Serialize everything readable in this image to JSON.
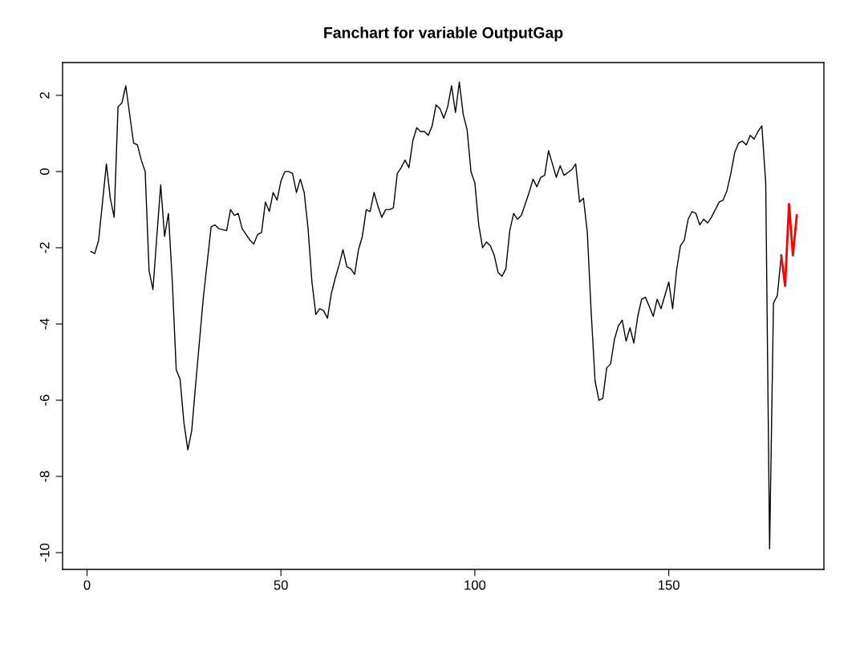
{
  "chart_data": {
    "type": "line",
    "title": "Fanchart for variable OutputGap",
    "xlim": [
      -6.3,
      190
    ],
    "ylim": [
      -10.44,
      2.86
    ],
    "xticks": [
      0,
      50,
      100,
      150
    ],
    "yticks": [
      -10,
      -8,
      -6,
      -4,
      -2,
      0,
      2
    ],
    "line_style": "solid",
    "marker": "none",
    "series": [
      {
        "color": "#000000",
        "x": [
          1,
          2,
          3,
          5,
          6,
          7,
          8,
          9,
          10,
          12,
          13,
          14,
          15,
          16,
          17,
          18,
          19,
          20,
          21,
          22,
          23,
          24,
          25,
          26,
          27,
          28,
          30,
          32,
          33,
          34,
          36,
          37,
          38,
          39,
          40,
          42,
          43,
          44,
          45,
          46,
          47,
          48,
          49,
          50,
          51,
          52,
          53,
          54,
          55,
          56,
          57,
          58,
          59,
          60,
          61,
          62,
          63,
          64,
          65,
          66,
          67,
          68,
          69,
          70,
          71,
          72,
          73,
          74,
          75,
          76,
          77,
          78,
          79,
          80,
          81,
          82,
          83,
          84,
          85,
          86,
          87,
          88,
          89,
          90,
          91,
          92,
          93,
          94,
          95,
          96,
          97,
          98,
          99,
          100,
          101,
          102,
          103,
          104,
          105,
          106,
          107,
          108,
          109,
          110,
          111,
          112,
          113,
          114,
          115,
          116,
          117,
          118,
          119,
          120,
          121,
          122,
          123,
          125,
          126,
          127,
          128,
          129,
          130,
          131,
          132,
          133,
          134,
          135,
          136,
          137,
          138,
          139,
          140,
          141,
          142,
          143,
          144,
          145,
          146,
          147,
          148,
          150,
          151,
          152,
          153,
          154,
          155,
          156,
          157,
          158,
          159,
          160,
          161,
          162,
          163,
          164,
          165,
          166,
          167,
          168,
          169,
          170,
          171,
          172,
          173,
          174,
          175,
          176,
          177,
          178,
          179
        ],
        "values": [
          -2.1,
          -2.15,
          -1.8,
          0.2,
          -0.7,
          -1.2,
          1.7,
          1.8,
          2.25,
          0.75,
          0.7,
          0.3,
          0.0,
          -2.6,
          -3.1,
          -1.7,
          -0.35,
          -1.7,
          -1.1,
          -2.9,
          -5.2,
          -5.45,
          -6.6,
          -7.3,
          -6.8,
          -5.6,
          -3.3,
          -1.45,
          -1.4,
          -1.5,
          -1.55,
          -1.0,
          -1.15,
          -1.1,
          -1.5,
          -1.8,
          -1.9,
          -1.65,
          -1.6,
          -0.8,
          -1.05,
          -0.55,
          -0.75,
          -0.25,
          0.0,
          0.0,
          -0.05,
          -0.55,
          -0.2,
          -0.55,
          -1.5,
          -2.9,
          -3.75,
          -3.6,
          -3.65,
          -3.85,
          -3.2,
          -2.8,
          -2.45,
          -2.05,
          -2.5,
          -2.55,
          -2.7,
          -2.05,
          -1.7,
          -1.0,
          -1.05,
          -0.55,
          -0.9,
          -1.2,
          -1.0,
          -1.0,
          -0.95,
          -0.05,
          0.1,
          0.3,
          0.1,
          0.8,
          1.15,
          1.05,
          1.05,
          0.95,
          1.2,
          1.75,
          1.65,
          1.4,
          1.7,
          2.25,
          1.55,
          2.35,
          1.5,
          1.1,
          0.0,
          -0.3,
          -1.4,
          -2.0,
          -1.85,
          -1.95,
          -2.2,
          -2.65,
          -2.75,
          -2.55,
          -1.55,
          -1.1,
          -1.25,
          -1.15,
          -0.85,
          -0.55,
          -0.2,
          -0.4,
          -0.15,
          -0.1,
          0.55,
          0.2,
          -0.15,
          0.15,
          -0.1,
          0.05,
          0.2,
          -0.8,
          -0.7,
          -1.6,
          -3.7,
          -5.5,
          -6.0,
          -5.95,
          -5.15,
          -5.05,
          -4.4,
          -4.05,
          -3.9,
          -4.45,
          -4.1,
          -4.5,
          -3.8,
          -3.35,
          -3.3,
          -3.55,
          -3.8,
          -3.35,
          -3.6,
          -2.9,
          -3.6,
          -2.6,
          -1.95,
          -1.8,
          -1.25,
          -1.05,
          -1.1,
          -1.4,
          -1.25,
          -1.35,
          -1.2,
          -1.0,
          -0.8,
          -0.75,
          -0.5,
          -0.05,
          0.5,
          0.75,
          0.8,
          0.7,
          0.95,
          0.85,
          1.05,
          1.2,
          -0.3,
          -9.9,
          -3.45,
          -3.25,
          -2.2
        ]
      },
      {
        "color": "#ff0000",
        "x": [
          179,
          180,
          181,
          182,
          183
        ],
        "values": [
          -2.2,
          -3.0,
          -0.85,
          -2.2,
          -1.15
        ]
      }
    ]
  }
}
